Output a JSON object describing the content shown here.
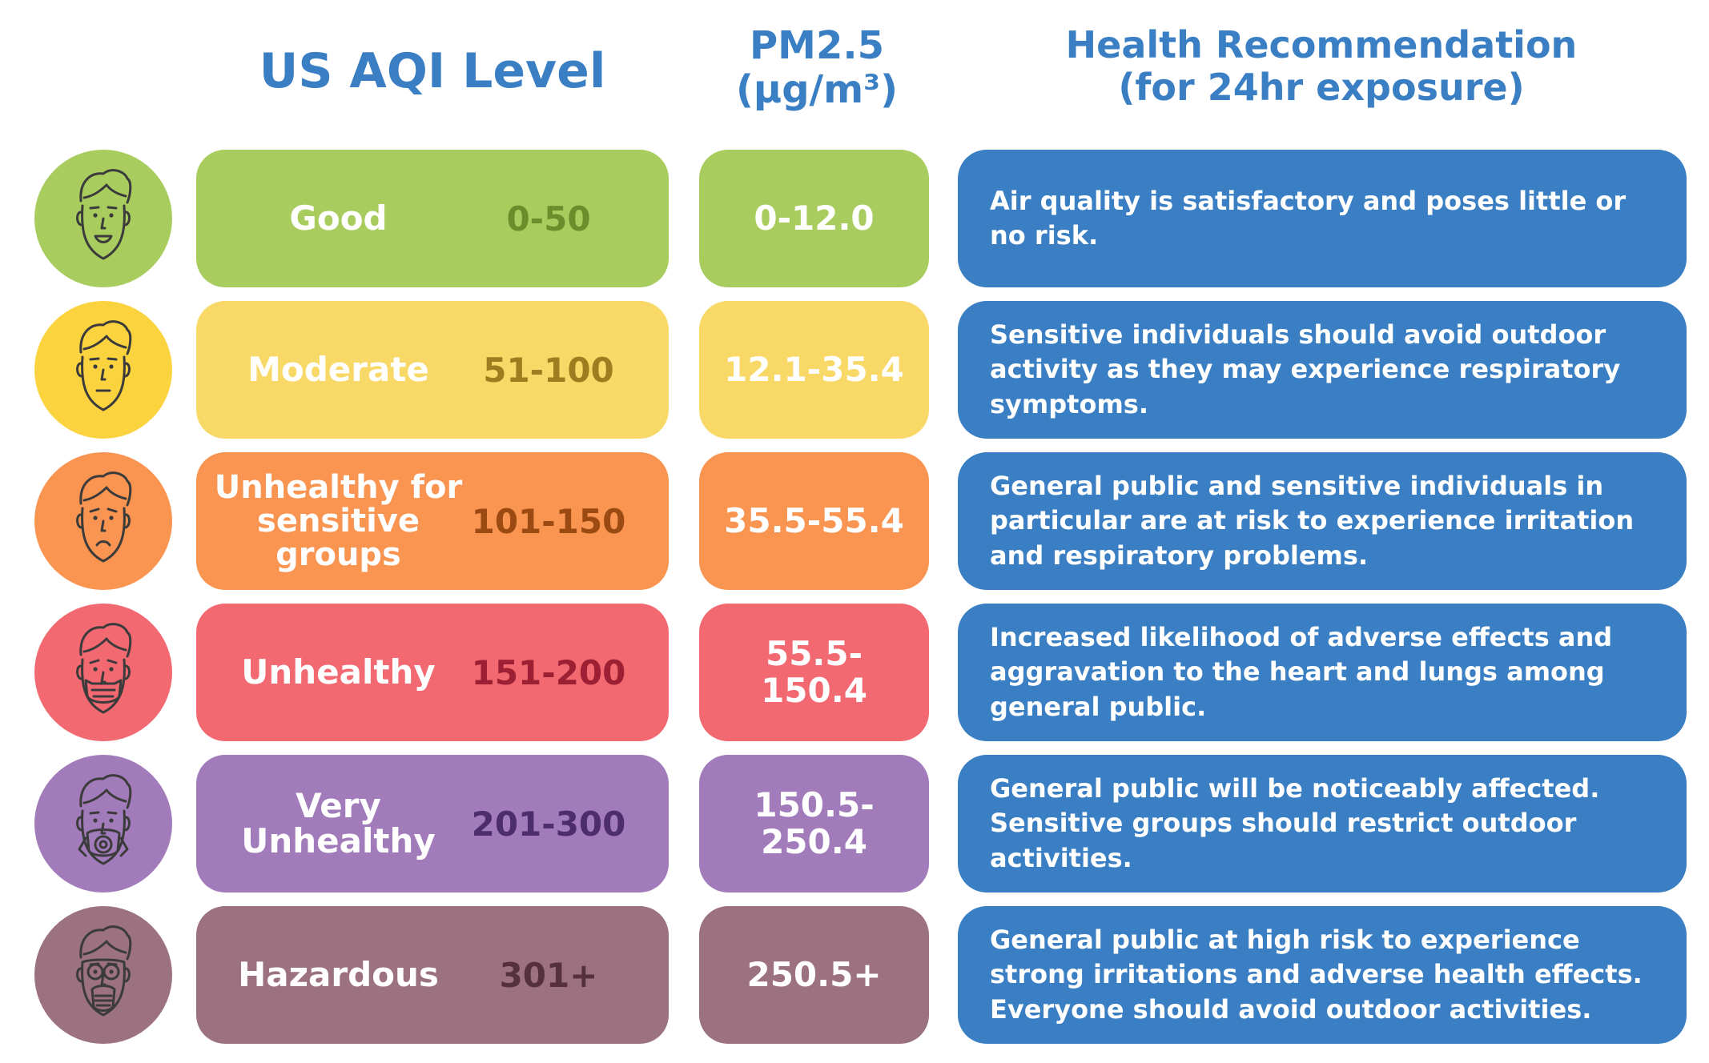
{
  "headers": {
    "aqi": "US AQI Level",
    "pm_title": "PM2.5",
    "pm_unit": "(µg/m³)",
    "rec_title": "Health Recommendation",
    "rec_sub": "(for 24hr exposure)"
  },
  "colors": {
    "header": "#3a7fc4",
    "recommendation_box": "#3a7fc4"
  },
  "rows": [
    {
      "label": "Good",
      "range": "0-50",
      "pm": "0-12.0",
      "recommendation": "Air quality is satisfactory and poses little or no risk.",
      "icon": "smiling-face-icon",
      "color": "#a8cd5e",
      "light": "#a8cd5e",
      "range_color": "#6a8e2b"
    },
    {
      "label": "Moderate",
      "range": "51-100",
      "pm": "12.1-35.4",
      "recommendation": "Sensitive individuals should avoid outdoor activity as they may experience respiratory symptoms.",
      "icon": "neutral-face-icon",
      "color": "#fbd33f",
      "light": "#f8d866",
      "range_color": "#9e7d20"
    },
    {
      "label": "Unhealthy for sensitive groups",
      "range": "101-150",
      "pm": "35.5-55.4",
      "recommendation": "General public and sensitive individuals in particular are at risk to experience irritation and respiratory problems.",
      "icon": "sad-face-icon",
      "color": "#f99451",
      "light": "#f99451",
      "range_color": "#9b4a12"
    },
    {
      "label": "Unhealthy",
      "range": "151-200",
      "pm": "55.5-150.4",
      "recommendation": "Increased likelihood of adverse effects and aggravation to the heart and lungs among general public.",
      "icon": "face-mask-icon",
      "color": "#f26971",
      "light": "#f26971",
      "range_color": "#9c1f33"
    },
    {
      "label": "Very Unhealthy",
      "range": "201-300",
      "pm": "150.5-250.4",
      "recommendation": "General public will be noticeably affected. Sensitive groups should restrict outdoor activities.",
      "icon": "respirator-face-icon",
      "color": "#a27bbb",
      "light": "#a27bbb",
      "range_color": "#4d2d6d"
    },
    {
      "label": "Hazardous",
      "range": "301+",
      "pm": "250.5+",
      "recommendation": "General public at high risk to experience strong irritations and adverse health effects. Everyone should avoid outdoor activities.",
      "icon": "gas-mask-face-icon",
      "color": "#9c7180",
      "light": "#9c7180",
      "range_color": "#55303d"
    }
  ]
}
